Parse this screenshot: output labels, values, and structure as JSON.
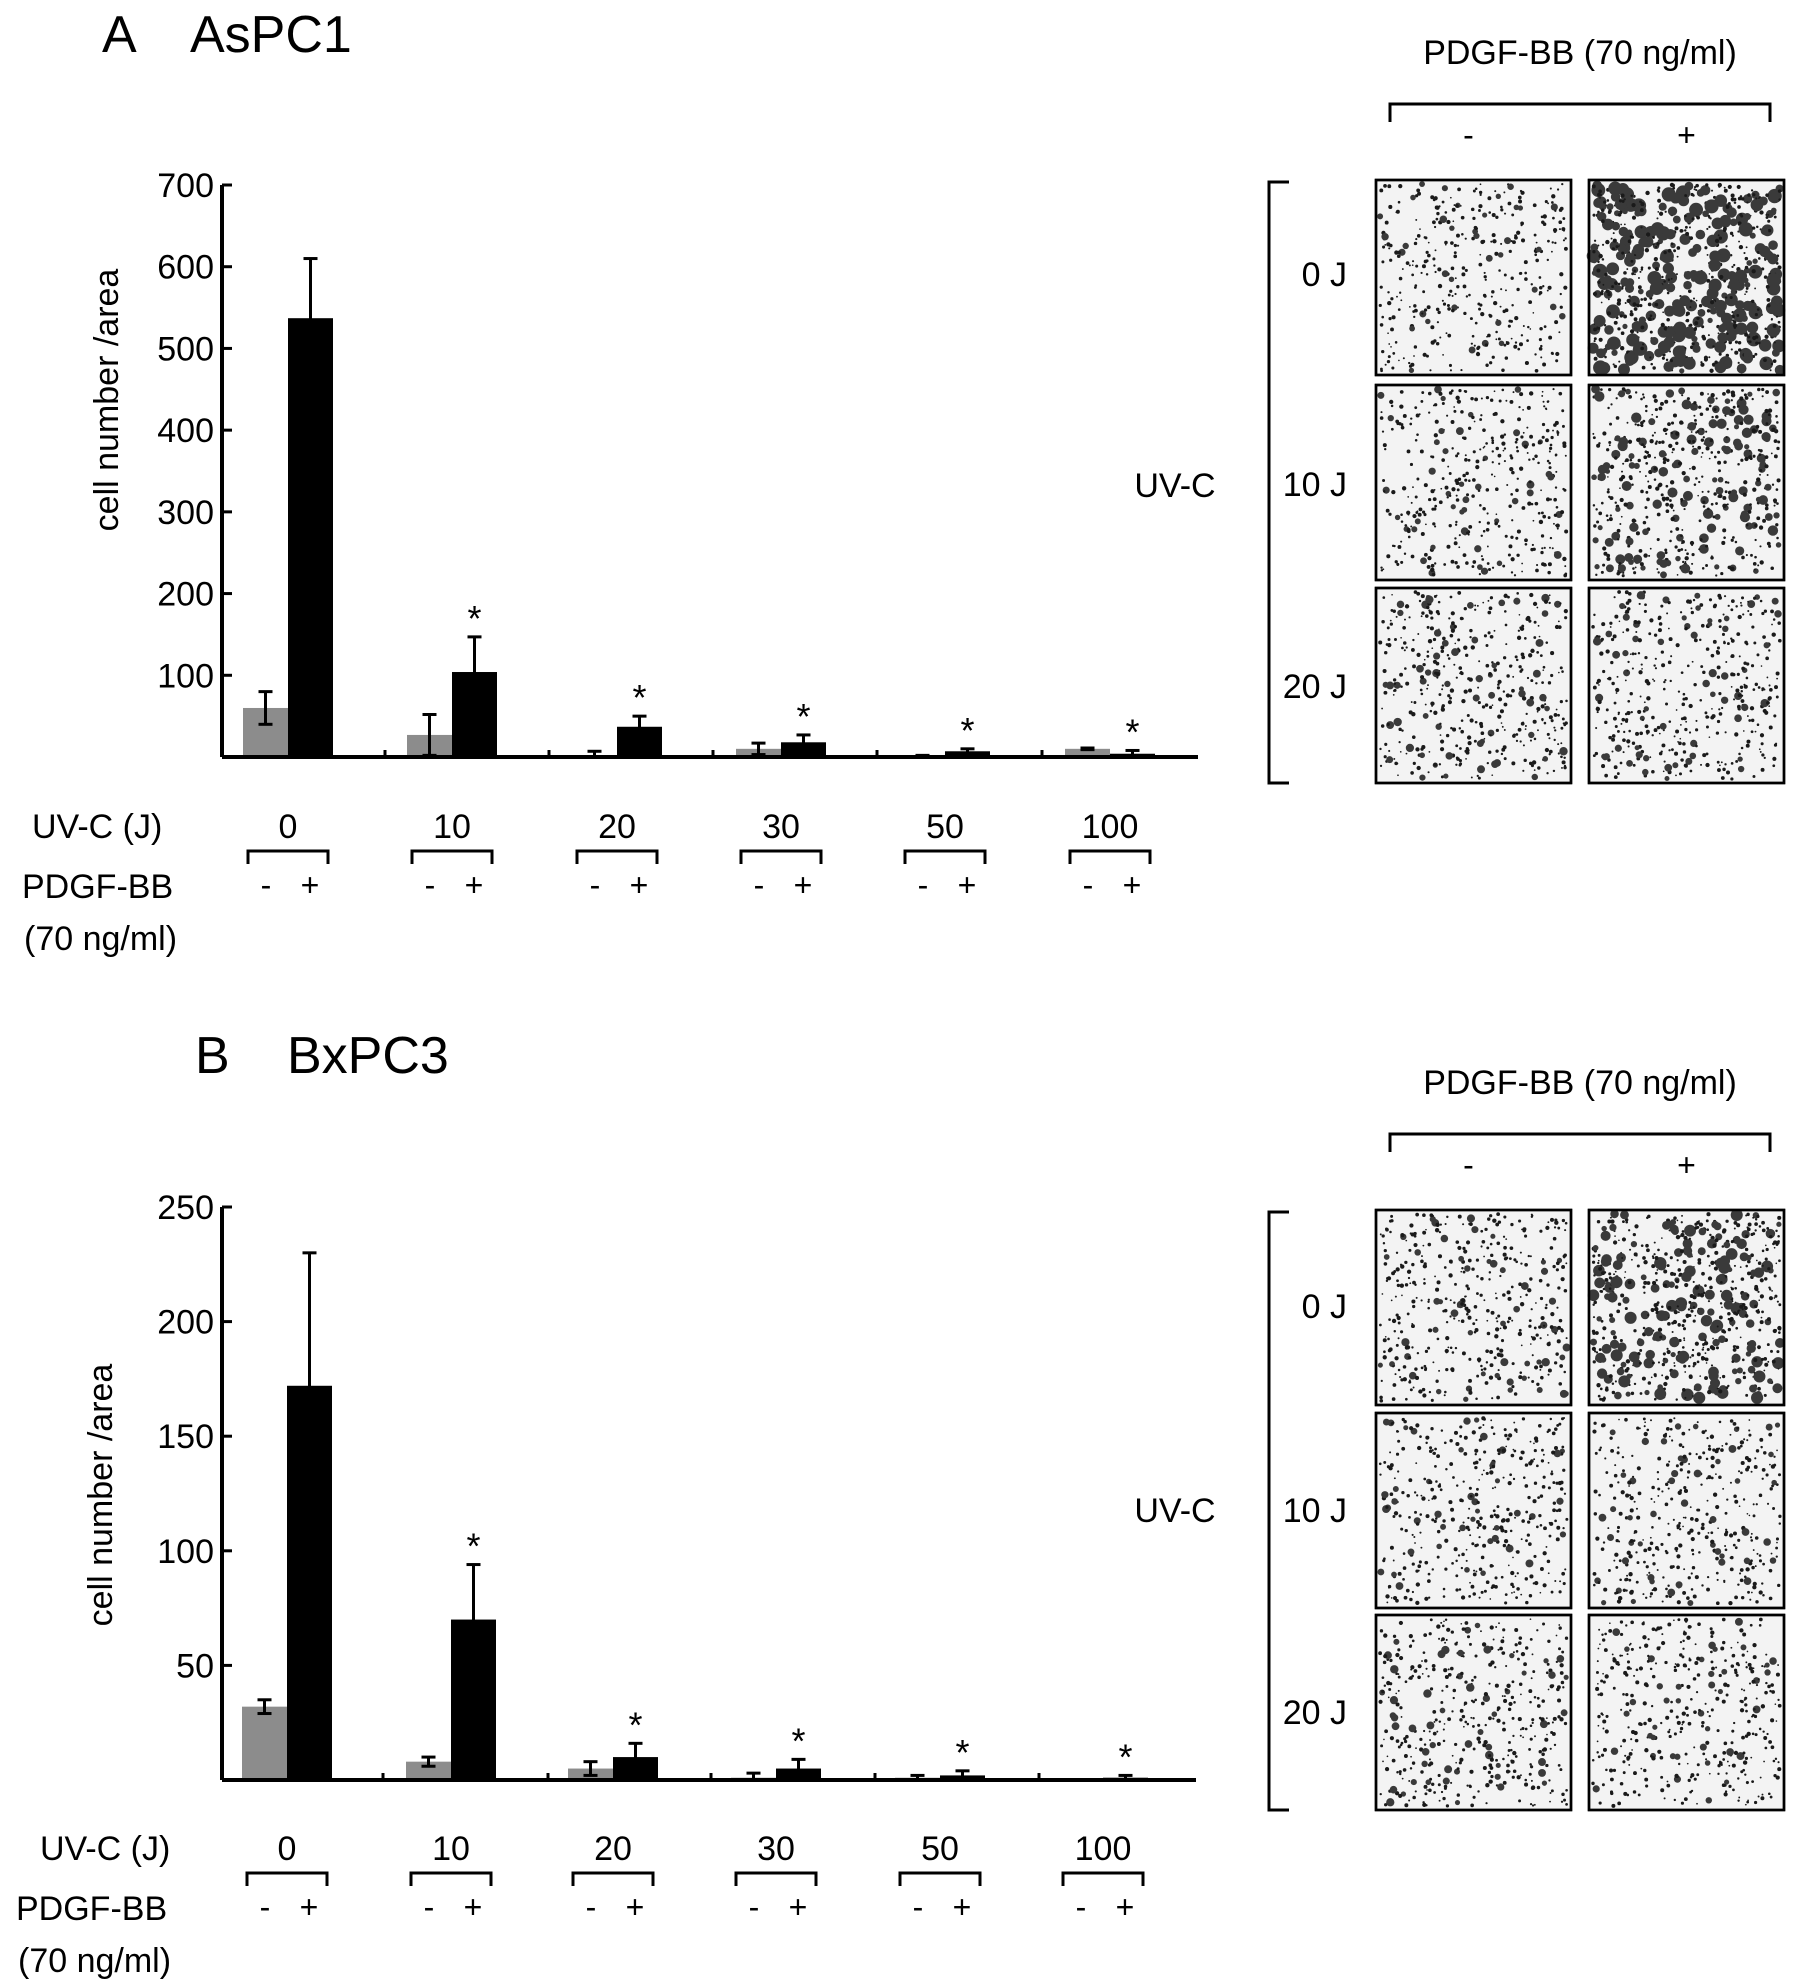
{
  "panels": [
    {
      "letter": "A",
      "cell_line": "AsPC1",
      "micrograph": {
        "treatment_label": "PDGF-BB (70 ng/ml)",
        "column_signs": [
          "-",
          "+"
        ],
        "uv_label": "UV-C",
        "row_labels": [
          "0 J",
          "10 J",
          "20 J"
        ],
        "density": [
          [
            0.25,
            0.95
          ],
          [
            0.3,
            0.55
          ],
          [
            0.35,
            0.35
          ]
        ]
      },
      "table": {
        "uv_row_label": "UV-C (J)",
        "pdgf_row_label_1": "PDGF-BB",
        "pdgf_row_label_2": "(70 ng/ml)",
        "minus": "-",
        "plus": "+"
      }
    },
    {
      "letter": "B",
      "cell_line": "BxPC3",
      "micrograph": {
        "treatment_label": "PDGF-BB (70 ng/ml)",
        "column_signs": [
          "-",
          "+"
        ],
        "uv_label": "UV-C",
        "row_labels": [
          "0 J",
          "10 J",
          "20 J"
        ],
        "density": [
          [
            0.35,
            0.75
          ],
          [
            0.3,
            0.3
          ],
          [
            0.35,
            0.3
          ]
        ]
      },
      "table": {
        "uv_row_label": "UV-C (J)",
        "pdgf_row_label_1": "PDGF-BB",
        "pdgf_row_label_2": "(70 ng/ml)",
        "minus": "-",
        "plus": "+"
      }
    }
  ],
  "chart_data": [
    {
      "type": "bar",
      "ylabel": "cell number /area",
      "ylim": [
        0,
        700
      ],
      "yticks": [
        100,
        200,
        300,
        400,
        500,
        600,
        700
      ],
      "categories": [
        "0",
        "10",
        "20",
        "30",
        "50",
        "100"
      ],
      "series": [
        {
          "values": [
            60,
            27,
            2,
            10,
            0,
            10
          ],
          "errors": [
            20,
            25,
            5,
            7,
            2,
            1
          ],
          "color": "#8c8c8c"
        },
        {
          "values": [
            537,
            104,
            37,
            18,
            7,
            4
          ],
          "errors": [
            73,
            43,
            13,
            9,
            3,
            4
          ],
          "color": "#000000"
        }
      ],
      "significance": [
        "",
        "*",
        "*",
        "*",
        "*",
        "*"
      ],
      "grid": false
    },
    {
      "type": "bar",
      "ylabel": "cell number /area",
      "ylim": [
        0,
        250
      ],
      "yticks": [
        50,
        100,
        150,
        200,
        250
      ],
      "categories": [
        "0",
        "10",
        "20",
        "30",
        "50",
        "100"
      ],
      "series": [
        {
          "values": [
            32,
            8,
            5,
            1,
            1,
            0
          ],
          "errors": [
            3,
            2,
            3,
            2,
            1,
            0
          ],
          "color": "#8c8c8c"
        },
        {
          "values": [
            172,
            70,
            10,
            5,
            2,
            1
          ],
          "errors": [
            58,
            24,
            6,
            4,
            2,
            1
          ],
          "color": "#000000"
        }
      ],
      "significance": [
        "",
        "*",
        "*",
        "*",
        "*",
        "*"
      ],
      "grid": false
    }
  ]
}
